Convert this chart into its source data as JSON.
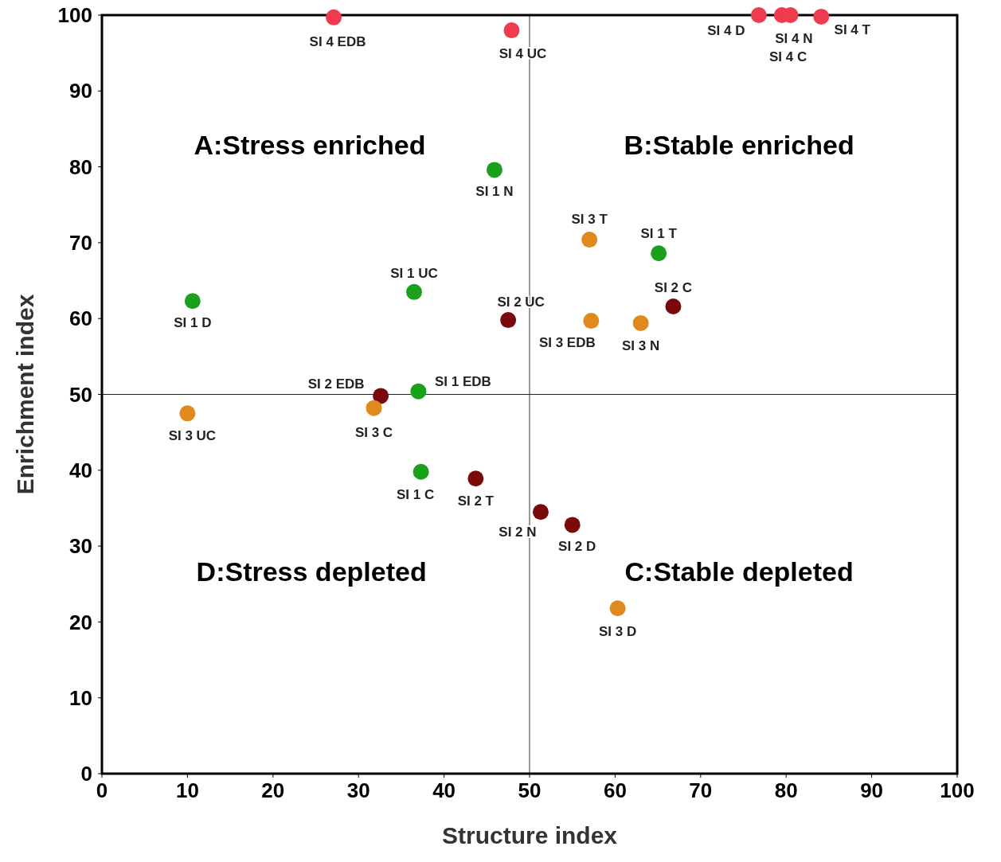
{
  "chart_data": {
    "type": "scatter",
    "xlabel": "Structure index",
    "ylabel": "Enrichment index",
    "xlim": [
      0,
      100
    ],
    "ylim": [
      0,
      100
    ],
    "xticks": [
      0,
      10,
      20,
      30,
      40,
      50,
      60,
      70,
      80,
      90,
      100
    ],
    "yticks": [
      0,
      10,
      20,
      30,
      40,
      50,
      60,
      70,
      80,
      90,
      100
    ],
    "grid": false,
    "marker": "circle",
    "ref_lines": [
      {
        "axis": "x",
        "value": 50,
        "color": "#555555"
      },
      {
        "axis": "y",
        "value": 50,
        "color": "#222222"
      }
    ],
    "annotations": [
      "A:Stress enriched",
      "B:Stable enriched",
      "D:Stress depleted",
      "C:Stable depleted"
    ],
    "series": [
      {
        "color": "#1aa01a",
        "x": [
          45.9,
          65.1,
          10.6,
          36.5,
          37.0,
          37.3
        ],
        "values": [
          79.6,
          68.6,
          62.3,
          63.5,
          50.4,
          39.8
        ],
        "value_labels": [
          "SI 1 N",
          "SI 1 T",
          "SI 1 D",
          "SI 1 UC",
          "SI 1 EDB",
          "SI 1 C"
        ]
      },
      {
        "color": "#7a0a0a",
        "x": [
          47.5,
          66.8,
          32.6,
          43.7,
          51.3,
          55.0
        ],
        "values": [
          59.8,
          61.6,
          49.8,
          38.9,
          34.5,
          32.8
        ],
        "value_labels": [
          "SI 2 UC",
          "SI 2 C",
          "SI 2 EDB",
          "SI 2 T",
          "SI 2 N",
          "SI 2 D"
        ]
      },
      {
        "color": "#e08a1e",
        "x": [
          57.0,
          57.2,
          63.0,
          10.0,
          31.8,
          60.3
        ],
        "values": [
          70.4,
          59.7,
          59.4,
          47.5,
          48.2,
          21.8
        ],
        "value_labels": [
          "SI 3 T",
          "SI 3 EDB",
          "SI 3 N",
          "SI 3 UC",
          "SI 3 C",
          "SI 3 D"
        ]
      },
      {
        "color": "#ee3b4e",
        "x": [
          27.1,
          47.9,
          76.8,
          79.5,
          80.5,
          84.1
        ],
        "values": [
          99.7,
          98.0,
          100,
          100,
          100,
          99.8
        ],
        "value_labels": [
          "SI 4 EDB",
          "SI 4 UC",
          "SI 4 D",
          "SI 4 N",
          "SI 4 C",
          "SI 4 T"
        ]
      }
    ]
  }
}
